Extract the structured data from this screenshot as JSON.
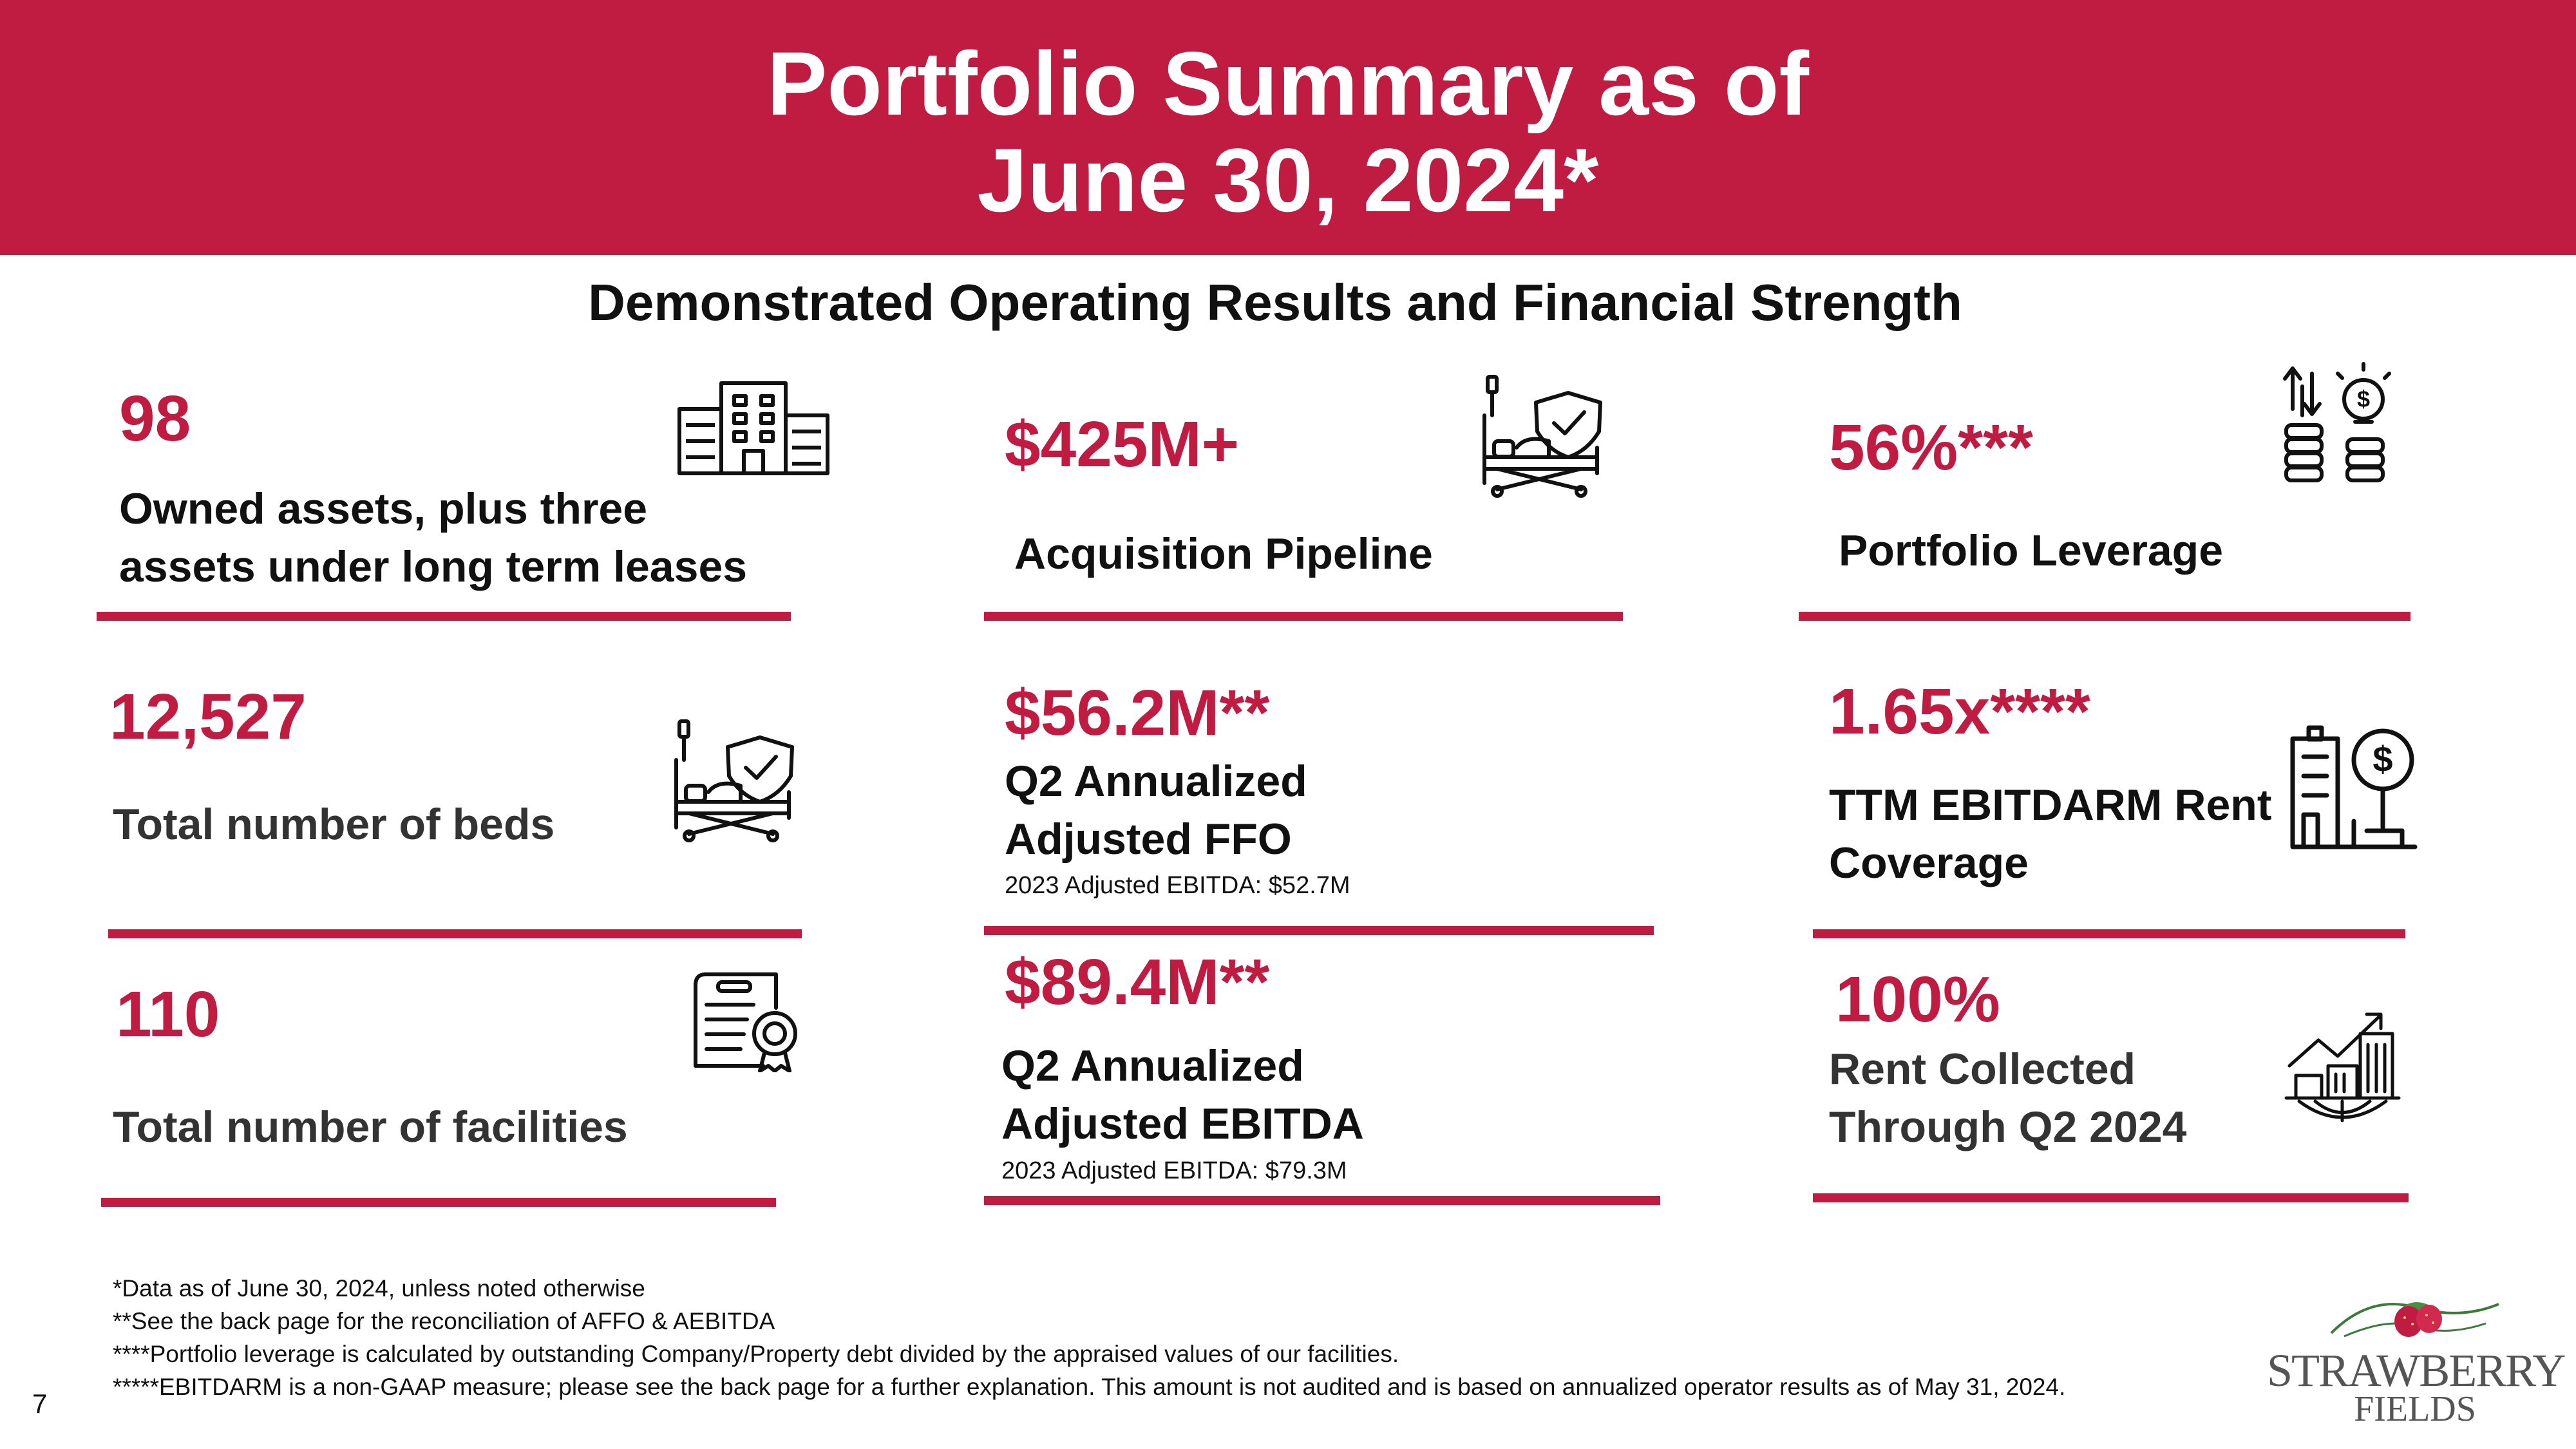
{
  "header": {
    "title_line1": "Portfolio Summary as of",
    "title_line2": "June 30, 2024*"
  },
  "subtitle": "Demonstrated Operating Results and Financial Strength",
  "cards": {
    "owned_assets": {
      "value": "98",
      "label_line1": "Owned assets, plus three",
      "label_line2": "assets under long term leases",
      "icon": "buildings-icon"
    },
    "pipeline": {
      "value": "$425M+",
      "label": "Acquisition Pipeline",
      "icon": "hospital-bed-shield-icon"
    },
    "leverage": {
      "value": "56%***",
      "label": "Portfolio Leverage",
      "icon": "coins-arrows-lightbulb-icon"
    },
    "beds": {
      "value": "12,527",
      "label": "Total number of beds",
      "icon": "hospital-bed-shield-icon"
    },
    "affo": {
      "value": "$56.2M**",
      "label_line1": "Q2 Annualized",
      "label_line2": "Adjusted FFO",
      "note": "2023 Adjusted EBITDA: $52.7M"
    },
    "coverage": {
      "value": "1.65x****",
      "label_line1": "TTM EBITDARM Rent",
      "label_line2": "Coverage",
      "icon": "building-dollar-icon"
    },
    "facilities": {
      "value": "110",
      "label": "Total number of facilities",
      "icon": "certificate-icon"
    },
    "ebitda": {
      "value": "$89.4M**",
      "label_line1": "Q2 Annualized",
      "label_line2": "Adjusted EBITDA",
      "note": "2023 Adjusted EBITDA: $79.3M"
    },
    "rent": {
      "value": "100%",
      "label_line1": "Rent Collected",
      "label_line2": "Through Q2 2024",
      "icon": "city-growth-icon"
    }
  },
  "footnotes": [
    "*Data as of June 30, 2024, unless noted otherwise",
    "**See the back page for the reconciliation of AFFO & AEBITDA",
    "****Portfolio leverage is calculated by outstanding Company/Property debt divided by the appraised values of our facilities.",
    "*****EBITDARM is a non-GAAP measure; please see the back page for a further explanation. This amount is not audited and is based on annualized operator results as of May 31, 2024."
  ],
  "page_number": "7",
  "logo": {
    "line1": "STRAWBERRY",
    "line2": "FIELDS"
  },
  "colors": {
    "accent": "#c01c42",
    "text": "#111111"
  }
}
